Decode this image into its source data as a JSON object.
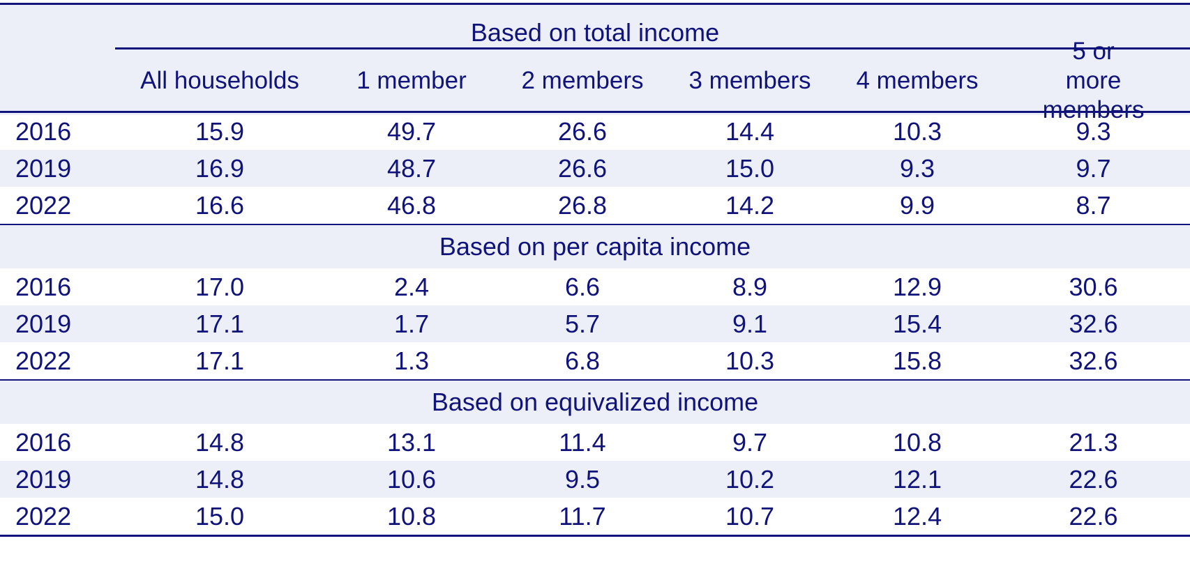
{
  "table": {
    "top_header": "Based on total income",
    "columns": [
      "All households",
      "1 member",
      "2 members",
      "3 members",
      "4 members",
      "5 or more members"
    ],
    "sections": [
      {
        "title": "Based on total income",
        "rows": [
          {
            "year": "2016",
            "values": [
              "15.9",
              "49.7",
              "26.6",
              "14.4",
              "10.3",
              "9.3"
            ]
          },
          {
            "year": "2019",
            "values": [
              "16.9",
              "48.7",
              "26.6",
              "15.0",
              "9.3",
              "9.7"
            ]
          },
          {
            "year": "2022",
            "values": [
              "16.6",
              "46.8",
              "26.8",
              "14.2",
              "9.9",
              "8.7"
            ]
          }
        ]
      },
      {
        "title": "Based on per capita income",
        "rows": [
          {
            "year": "2016",
            "values": [
              "17.0",
              "2.4",
              "6.6",
              "8.9",
              "12.9",
              "30.6"
            ]
          },
          {
            "year": "2019",
            "values": [
              "17.1",
              "1.7",
              "5.7",
              "9.1",
              "15.4",
              "32.6"
            ]
          },
          {
            "year": "2022",
            "values": [
              "17.1",
              "1.3",
              "6.8",
              "10.3",
              "15.8",
              "32.6"
            ]
          }
        ]
      },
      {
        "title": "Based on equivalized income",
        "rows": [
          {
            "year": "2016",
            "values": [
              "14.8",
              "13.1",
              "11.4",
              "9.7",
              "10.8",
              "21.3"
            ]
          },
          {
            "year": "2019",
            "values": [
              "14.8",
              "10.6",
              "9.5",
              "10.2",
              "12.1",
              "22.6"
            ]
          },
          {
            "year": "2022",
            "values": [
              "15.0",
              "10.8",
              "11.7",
              "10.7",
              "12.4",
              "22.6"
            ]
          }
        ]
      }
    ]
  },
  "colors": {
    "text": "#10137a",
    "shade": "#eceff8",
    "rule": "#10137a"
  }
}
